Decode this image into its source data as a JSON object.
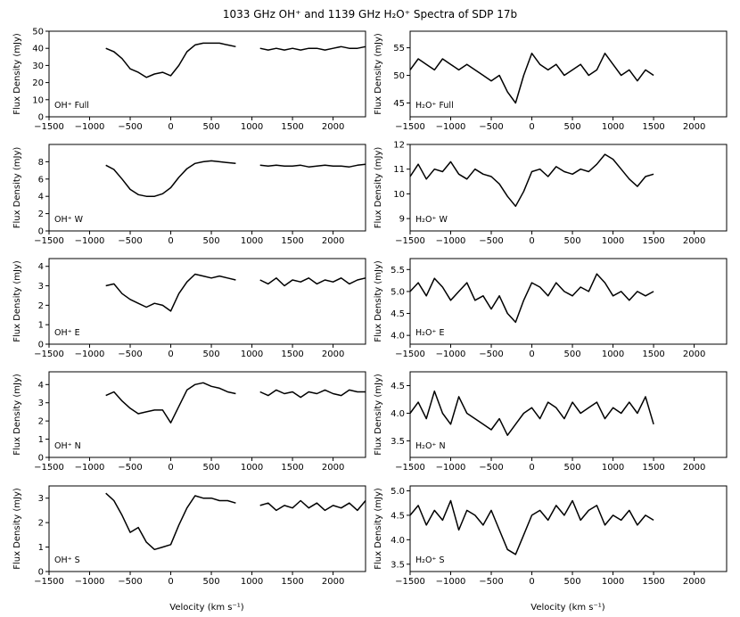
{
  "figure": {
    "title": "1033 GHz OH⁺ and 1139 GHz H₂O⁺ Spectra of SDP 17b",
    "xlabel": "Velocity (km s⁻¹)",
    "ylabel": "Flux Density (mJy)"
  },
  "chart_data": [
    {
      "type": "line",
      "panel": "OH+ Full",
      "annotation": "OH⁺ Full",
      "xlim": [
        -1500,
        2400
      ],
      "ylim": [
        0,
        50
      ],
      "yticks": [
        0,
        10,
        20,
        30,
        40,
        50
      ],
      "xticks": [
        -1500,
        -1000,
        -500,
        0,
        500,
        1000,
        1500,
        2000
      ],
      "series": [
        {
          "segment": "low",
          "x": [
            -800,
            -700,
            -600,
            -500,
            -400,
            -300,
            -200,
            -100,
            0,
            100,
            200,
            300,
            400,
            500,
            600,
            700,
            800
          ],
          "y": [
            40,
            38,
            34,
            28,
            26,
            23,
            25,
            26,
            24,
            30,
            38,
            42,
            43,
            43,
            43,
            42,
            41
          ]
        },
        {
          "segment": "high",
          "x": [
            1100,
            1200,
            1300,
            1400,
            1500,
            1600,
            1700,
            1800,
            1900,
            2000,
            2100,
            2200,
            2300,
            2400
          ],
          "y": [
            40,
            39,
            40,
            39,
            40,
            39,
            40,
            40,
            39,
            40,
            41,
            40,
            40,
            41
          ]
        }
      ]
    },
    {
      "type": "line",
      "panel": "H2O+ Full",
      "annotation": "H₂O⁺ Full",
      "xlim": [
        -1500,
        2400
      ],
      "ylim": [
        42.5,
        58
      ],
      "yticks": [
        45,
        50,
        55
      ],
      "xticks": [
        -1500,
        -1000,
        -500,
        0,
        500,
        1000,
        1500,
        2000
      ],
      "series": [
        {
          "x": [
            -1500,
            -1400,
            -1300,
            -1200,
            -1100,
            -1000,
            -900,
            -800,
            -700,
            -600,
            -500,
            -400,
            -300,
            -200,
            -100,
            0,
            100,
            200,
            300,
            400,
            500,
            600,
            700,
            800,
            900,
            1000,
            1100,
            1200,
            1300,
            1400,
            1500
          ],
          "y": [
            51,
            53,
            52,
            51,
            53,
            52,
            51,
            52,
            51,
            50,
            49,
            50,
            47,
            45,
            50,
            54,
            52,
            51,
            52,
            50,
            51,
            52,
            50,
            51,
            54,
            52,
            50,
            51,
            49,
            51,
            50
          ]
        }
      ]
    },
    {
      "type": "line",
      "panel": "OH+ W",
      "annotation": "OH⁺ W",
      "xlim": [
        -1500,
        2400
      ],
      "ylim": [
        0,
        10
      ],
      "yticks": [
        0,
        2,
        4,
        6,
        8
      ],
      "xticks": [
        -1500,
        -1000,
        -500,
        0,
        500,
        1000,
        1500,
        2000
      ],
      "series": [
        {
          "segment": "low",
          "x": [
            -800,
            -700,
            -600,
            -500,
            -400,
            -300,
            -200,
            -100,
            0,
            100,
            200,
            300,
            400,
            500,
            600,
            700,
            800
          ],
          "y": [
            7.6,
            7.1,
            6.0,
            4.8,
            4.2,
            4.0,
            4.0,
            4.3,
            5.0,
            6.2,
            7.2,
            7.8,
            8.0,
            8.1,
            8.0,
            7.9,
            7.8
          ]
        },
        {
          "segment": "high",
          "x": [
            1100,
            1200,
            1300,
            1400,
            1500,
            1600,
            1700,
            1800,
            1900,
            2000,
            2100,
            2200,
            2300,
            2400
          ],
          "y": [
            7.6,
            7.5,
            7.6,
            7.5,
            7.5,
            7.6,
            7.4,
            7.5,
            7.6,
            7.5,
            7.5,
            7.4,
            7.6,
            7.7
          ]
        }
      ]
    },
    {
      "type": "line",
      "panel": "H2O+ W",
      "annotation": "H₂O⁺ W",
      "xlim": [
        -1500,
        2400
      ],
      "ylim": [
        8.5,
        12
      ],
      "yticks": [
        9,
        10,
        11,
        12
      ],
      "xticks": [
        -1500,
        -1000,
        -500,
        0,
        500,
        1000,
        1500,
        2000
      ],
      "series": [
        {
          "x": [
            -1500,
            -1400,
            -1300,
            -1200,
            -1100,
            -1000,
            -900,
            -800,
            -700,
            -600,
            -500,
            -400,
            -300,
            -200,
            -100,
            0,
            100,
            200,
            300,
            400,
            500,
            600,
            700,
            800,
            900,
            1000,
            1100,
            1200,
            1300,
            1400,
            1500
          ],
          "y": [
            10.7,
            11.2,
            10.6,
            11.0,
            10.9,
            11.3,
            10.8,
            10.6,
            11.0,
            10.8,
            10.7,
            10.4,
            9.9,
            9.5,
            10.1,
            10.9,
            11.0,
            10.7,
            11.1,
            10.9,
            10.8,
            11.0,
            10.9,
            11.2,
            11.6,
            11.4,
            11.0,
            10.6,
            10.3,
            10.7,
            10.8
          ]
        }
      ]
    },
    {
      "type": "line",
      "panel": "OH+ E",
      "annotation": "OH⁺ E",
      "xlim": [
        -1500,
        2400
      ],
      "ylim": [
        0,
        4.4
      ],
      "yticks": [
        0,
        1,
        2,
        3,
        4
      ],
      "xticks": [
        -1500,
        -1000,
        -500,
        0,
        500,
        1000,
        1500,
        2000
      ],
      "series": [
        {
          "segment": "low",
          "x": [
            -800,
            -700,
            -600,
            -500,
            -400,
            -300,
            -200,
            -100,
            0,
            100,
            200,
            300,
            400,
            500,
            600,
            700,
            800
          ],
          "y": [
            3.0,
            3.1,
            2.6,
            2.3,
            2.1,
            1.9,
            2.1,
            2.0,
            1.7,
            2.6,
            3.2,
            3.6,
            3.5,
            3.4,
            3.5,
            3.4,
            3.3
          ]
        },
        {
          "segment": "high",
          "x": [
            1100,
            1200,
            1300,
            1400,
            1500,
            1600,
            1700,
            1800,
            1900,
            2000,
            2100,
            2200,
            2300,
            2400
          ],
          "y": [
            3.3,
            3.1,
            3.4,
            3.0,
            3.3,
            3.2,
            3.4,
            3.1,
            3.3,
            3.2,
            3.4,
            3.1,
            3.3,
            3.4
          ]
        }
      ]
    },
    {
      "type": "line",
      "panel": "H2O+ E",
      "annotation": "H₂O⁺ E",
      "xlim": [
        -1500,
        2400
      ],
      "ylim": [
        3.8,
        5.75
      ],
      "yticks": [
        4.0,
        4.5,
        5.0,
        5.5
      ],
      "xticks": [
        -1500,
        -1000,
        -500,
        0,
        500,
        1000,
        1500,
        2000
      ],
      "series": [
        {
          "x": [
            -1500,
            -1400,
            -1300,
            -1200,
            -1100,
            -1000,
            -900,
            -800,
            -700,
            -600,
            -500,
            -400,
            -300,
            -200,
            -100,
            0,
            100,
            200,
            300,
            400,
            500,
            600,
            700,
            800,
            900,
            1000,
            1100,
            1200,
            1300,
            1400,
            1500
          ],
          "y": [
            5.0,
            5.2,
            4.9,
            5.3,
            5.1,
            4.8,
            5.0,
            5.2,
            4.8,
            4.9,
            4.6,
            4.9,
            4.5,
            4.3,
            4.8,
            5.2,
            5.1,
            4.9,
            5.2,
            5.0,
            4.9,
            5.1,
            5.0,
            5.4,
            5.2,
            4.9,
            5.0,
            4.8,
            5.0,
            4.9,
            5.0
          ]
        }
      ]
    },
    {
      "type": "line",
      "panel": "OH+ N",
      "annotation": "OH⁺ N",
      "xlim": [
        -1500,
        2400
      ],
      "ylim": [
        0,
        4.7
      ],
      "yticks": [
        0,
        1,
        2,
        3,
        4
      ],
      "xticks": [
        -1500,
        -1000,
        -500,
        0,
        500,
        1000,
        1500,
        2000
      ],
      "series": [
        {
          "segment": "low",
          "x": [
            -800,
            -700,
            -600,
            -500,
            -400,
            -300,
            -200,
            -100,
            0,
            100,
            200,
            300,
            400,
            500,
            600,
            700,
            800
          ],
          "y": [
            3.4,
            3.6,
            3.1,
            2.7,
            2.4,
            2.5,
            2.6,
            2.6,
            1.9,
            2.8,
            3.7,
            4.0,
            4.1,
            3.9,
            3.8,
            3.6,
            3.5
          ]
        },
        {
          "segment": "high",
          "x": [
            1100,
            1200,
            1300,
            1400,
            1500,
            1600,
            1700,
            1800,
            1900,
            2000,
            2100,
            2200,
            2300,
            2400
          ],
          "y": [
            3.6,
            3.4,
            3.7,
            3.5,
            3.6,
            3.3,
            3.6,
            3.5,
            3.7,
            3.5,
            3.4,
            3.7,
            3.6,
            3.6
          ]
        }
      ]
    },
    {
      "type": "line",
      "panel": "H2O+ N",
      "annotation": "H₂O⁺ N",
      "xlim": [
        -1500,
        2400
      ],
      "ylim": [
        3.2,
        4.75
      ],
      "yticks": [
        3.5,
        4.0,
        4.5
      ],
      "xticks": [
        -1500,
        -1000,
        -500,
        0,
        500,
        1000,
        1500,
        2000
      ],
      "series": [
        {
          "x": [
            -1500,
            -1400,
            -1300,
            -1200,
            -1100,
            -1000,
            -900,
            -800,
            -700,
            -600,
            -500,
            -400,
            -300,
            -200,
            -100,
            0,
            100,
            200,
            300,
            400,
            500,
            600,
            700,
            800,
            900,
            1000,
            1100,
            1200,
            1300,
            1400,
            1500
          ],
          "y": [
            4.0,
            4.2,
            3.9,
            4.4,
            4.0,
            3.8,
            4.3,
            4.0,
            3.9,
            3.8,
            3.7,
            3.9,
            3.6,
            3.8,
            4.0,
            4.1,
            3.9,
            4.2,
            4.1,
            3.9,
            4.2,
            4.0,
            4.1,
            4.2,
            3.9,
            4.1,
            4.0,
            4.2,
            4.0,
            4.3,
            3.8
          ]
        }
      ]
    },
    {
      "type": "line",
      "panel": "OH+ S",
      "annotation": "OH⁺ S",
      "xlim": [
        -1500,
        2400
      ],
      "ylim": [
        0,
        3.5
      ],
      "yticks": [
        0,
        1,
        2,
        3
      ],
      "xticks": [
        -1500,
        -1000,
        -500,
        0,
        500,
        1000,
        1500,
        2000
      ],
      "series": [
        {
          "segment": "low",
          "x": [
            -800,
            -700,
            -600,
            -500,
            -400,
            -300,
            -200,
            -100,
            0,
            100,
            200,
            300,
            400,
            500,
            600,
            700,
            800
          ],
          "y": [
            3.2,
            2.9,
            2.3,
            1.6,
            1.8,
            1.2,
            0.9,
            1.0,
            1.1,
            1.9,
            2.6,
            3.1,
            3.0,
            3.0,
            2.9,
            2.9,
            2.8
          ]
        },
        {
          "segment": "high",
          "x": [
            1100,
            1200,
            1300,
            1400,
            1500,
            1600,
            1700,
            1800,
            1900,
            2000,
            2100,
            2200,
            2300,
            2400
          ],
          "y": [
            2.7,
            2.8,
            2.5,
            2.7,
            2.6,
            2.9,
            2.6,
            2.8,
            2.5,
            2.7,
            2.6,
            2.8,
            2.5,
            2.9
          ]
        }
      ]
    },
    {
      "type": "line",
      "panel": "H2O+ S",
      "annotation": "H₂O⁺ S",
      "xlim": [
        -1500,
        2400
      ],
      "ylim": [
        3.35,
        5.1
      ],
      "yticks": [
        3.5,
        4.0,
        4.5,
        5.0
      ],
      "xticks": [
        -1500,
        -1000,
        -500,
        0,
        500,
        1000,
        1500,
        2000
      ],
      "series": [
        {
          "x": [
            -1500,
            -1400,
            -1300,
            -1200,
            -1100,
            -1000,
            -900,
            -800,
            -700,
            -600,
            -500,
            -400,
            -300,
            -200,
            -100,
            0,
            100,
            200,
            300,
            400,
            500,
            600,
            700,
            800,
            900,
            1000,
            1100,
            1200,
            1300,
            1400,
            1500
          ],
          "y": [
            4.5,
            4.7,
            4.3,
            4.6,
            4.4,
            4.8,
            4.2,
            4.6,
            4.5,
            4.3,
            4.6,
            4.2,
            3.8,
            3.7,
            4.1,
            4.5,
            4.6,
            4.4,
            4.7,
            4.5,
            4.8,
            4.4,
            4.6,
            4.7,
            4.3,
            4.5,
            4.4,
            4.6,
            4.3,
            4.5,
            4.4
          ]
        }
      ]
    }
  ]
}
